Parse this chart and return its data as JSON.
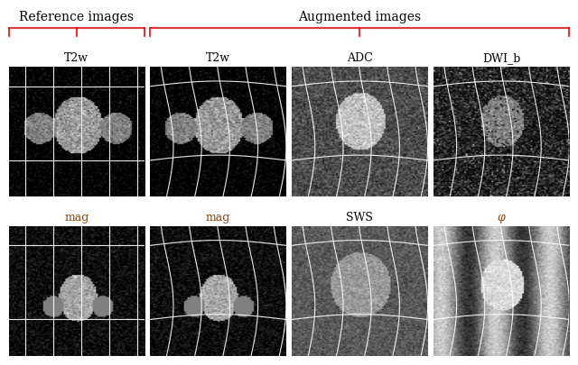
{
  "title_reference": "Reference images",
  "title_augmented": "Augmented images",
  "col_labels_top": [
    "T2w",
    "T2w",
    "ADC",
    "DWI_b"
  ],
  "col_labels_bottom": [
    "mag",
    "mag",
    "SWS",
    "φ"
  ],
  "label_color_black": "#000000",
  "label_color_brown": "#8B4513",
  "bracket_color": "#FF0000",
  "bg_color": "#ffffff",
  "figure_width": 6.4,
  "figure_height": 4.06,
  "dpi": 100
}
